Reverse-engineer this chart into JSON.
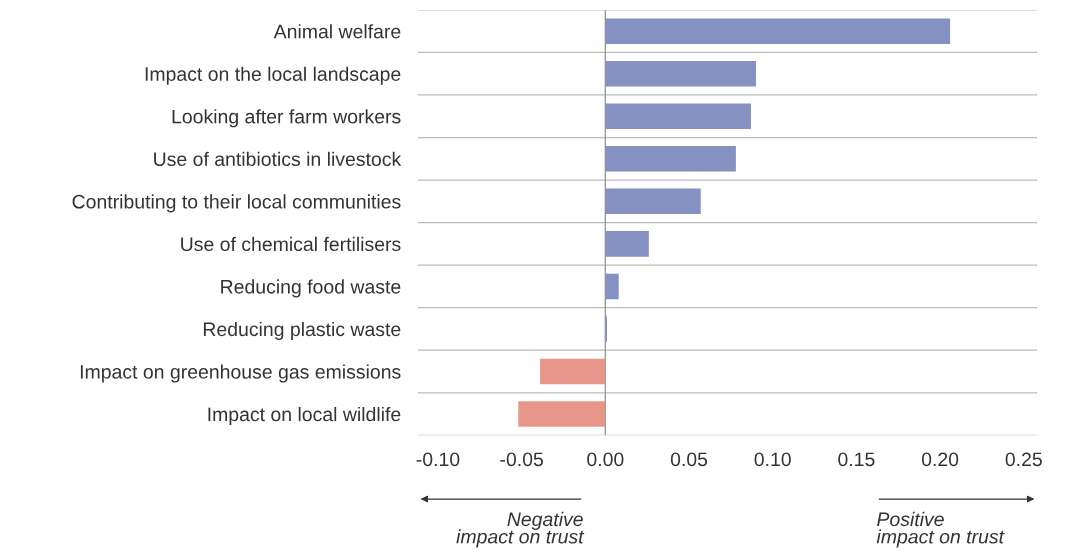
{
  "chart_data": {
    "type": "bar",
    "orientation": "horizontal",
    "categories": [
      "Animal welfare",
      "Impact on the local landscape",
      "Looking after farm workers",
      "Use of antibiotics in livestock",
      "Contributing to their local communities",
      "Use of chemical fertilisers",
      "Reducing food waste",
      "Reducing plastic waste",
      "Impact on greenhouse gas emissions",
      "Impact on local wildlife"
    ],
    "values": [
      0.206,
      0.09,
      0.087,
      0.078,
      0.057,
      0.026,
      0.008,
      0.001,
      -0.039,
      -0.052
    ],
    "colors": [
      "#8591c0",
      "#8591c0",
      "#8591c0",
      "#8591c0",
      "#8591c0",
      "#8591c0",
      "#8591c0",
      "#8591c0",
      "#e8958a",
      "#e8958a"
    ],
    "xlim": [
      -0.112,
      0.258
    ],
    "xticks": [
      {
        "value": -0.1,
        "label": "-0.10"
      },
      {
        "value": -0.05,
        "label": "-0.05"
      },
      {
        "value": 0,
        "label": "0.00"
      },
      {
        "value": 0.05,
        "label": "0.05"
      },
      {
        "value": 0.1,
        "label": "0.10"
      },
      {
        "value": 0.15,
        "label": "0.15"
      },
      {
        "value": 0.2,
        "label": "0.20"
      },
      {
        "value": 0.25,
        "label": "0.25"
      }
    ],
    "grid": "y",
    "ref_lines": [
      {
        "axis": "x",
        "value": 0,
        "color": "#9a9a9a"
      }
    ],
    "annotations": [
      "Negative\nimpact on trust",
      "Positive\nimpact on trust"
    ]
  }
}
